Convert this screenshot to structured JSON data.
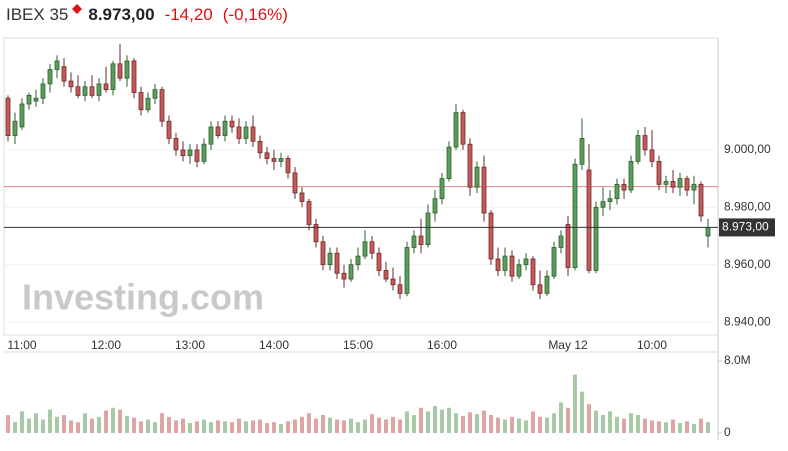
{
  "chart_data": {
    "type": "candlestick",
    "title": "IBEX 35",
    "change": "-14,20",
    "change_percent": "(-0,16%)",
    "watermark": "Investing.com",
    "last_price": {
      "value": 8973,
      "label": "8.973,00"
    },
    "prev_close": 8987.2,
    "up_color": "#5b9e5b",
    "down_color": "#c45a5a",
    "categories": [
      null,
      null,
      "11:00",
      null,
      null,
      null,
      null,
      null,
      null,
      null,
      null,
      null,
      null,
      null,
      "12:00",
      null,
      null,
      null,
      null,
      null,
      null,
      null,
      null,
      null,
      null,
      null,
      "13:00",
      null,
      null,
      null,
      null,
      null,
      null,
      null,
      null,
      null,
      null,
      null,
      "14:00",
      null,
      null,
      null,
      null,
      null,
      null,
      null,
      null,
      null,
      null,
      null,
      "15:00",
      null,
      null,
      null,
      null,
      null,
      null,
      null,
      null,
      null,
      null,
      null,
      "16:00",
      null,
      null,
      null,
      null,
      null,
      null,
      null,
      null,
      null,
      null,
      null,
      null,
      null,
      null,
      null,
      null,
      null,
      "May 12",
      null,
      null,
      null,
      null,
      null,
      null,
      null,
      null,
      null,
      null,
      null,
      "10:00",
      null,
      null,
      null,
      null,
      null,
      null,
      null,
      null
    ],
    "ohlc": [
      [
        9018,
        9019,
        9003,
        9005
      ],
      [
        9005,
        9013,
        9002,
        9010
      ],
      [
        9008,
        9018,
        9007,
        9016
      ],
      [
        9016,
        9020,
        9014,
        9019
      ],
      [
        9017,
        9021,
        9015,
        9018
      ],
      [
        9018,
        9025,
        9016,
        9023
      ],
      [
        9023,
        9030,
        9020,
        9028
      ],
      [
        9028,
        9033,
        9025,
        9031
      ],
      [
        9029,
        9032,
        9022,
        9024
      ],
      [
        9024,
        9027,
        9020,
        9022
      ],
      [
        9022,
        9026,
        9018,
        9019
      ],
      [
        9019,
        9024,
        9017,
        9022
      ],
      [
        9022,
        9026,
        9018,
        9019
      ],
      [
        9019,
        9025,
        9017,
        9023
      ],
      [
        9023,
        9029,
        9020,
        9021
      ],
      [
        9021,
        9031,
        9019,
        9030
      ],
      [
        9030,
        9037,
        9024,
        9025
      ],
      [
        9025,
        9033,
        9022,
        9031
      ],
      [
        9031,
        9032,
        9018,
        9020
      ],
      [
        9020,
        9022,
        9012,
        9014
      ],
      [
        9014,
        9020,
        9013,
        9018
      ],
      [
        9018,
        9023,
        9016,
        9021
      ],
      [
        9021,
        9022,
        9008,
        9010
      ],
      [
        9010,
        9012,
        9002,
        9004
      ],
      [
        9004,
        9006,
        8998,
        9000
      ],
      [
        9000,
        9003,
        8996,
        8998
      ],
      [
        8998,
        9002,
        8995,
        9000
      ],
      [
        9000,
        9002,
        8994,
        8996
      ],
      [
        8996,
        9004,
        8995,
        9002
      ],
      [
        9002,
        9010,
        9000,
        9008
      ],
      [
        9008,
        9010,
        9004,
        9005
      ],
      [
        9005,
        9012,
        9003,
        9010
      ],
      [
        9010,
        9012,
        9006,
        9008
      ],
      [
        9008,
        9011,
        9002,
        9004
      ],
      [
        9004,
        9010,
        9002,
        9008
      ],
      [
        9008,
        9012,
        9001,
        9003
      ],
      [
        9003,
        9005,
        8997,
        8999
      ],
      [
        8999,
        9001,
        8995,
        8997
      ],
      [
        8997,
        9000,
        8993,
        8996
      ],
      [
        8996,
        8999,
        8994,
        8997
      ],
      [
        8997,
        8998,
        8990,
        8992
      ],
      [
        8992,
        8994,
        8983,
        8985
      ],
      [
        8985,
        8987,
        8980,
        8982
      ],
      [
        8982,
        8983,
        8972,
        8974
      ],
      [
        8974,
        8976,
        8966,
        8968
      ],
      [
        8968,
        8970,
        8958,
        8960
      ],
      [
        8960,
        8966,
        8958,
        8964
      ],
      [
        8964,
        8966,
        8955,
        8957
      ],
      [
        8957,
        8960,
        8952,
        8955
      ],
      [
        8955,
        8962,
        8954,
        8960
      ],
      [
        8960,
        8966,
        8958,
        8963
      ],
      [
        8963,
        8972,
        8962,
        8968
      ],
      [
        8968,
        8970,
        8962,
        8964
      ],
      [
        8964,
        8966,
        8956,
        8958
      ],
      [
        8958,
        8961,
        8954,
        8955
      ],
      [
        8955,
        8959,
        8951,
        8953
      ],
      [
        8953,
        8956,
        8948,
        8950
      ],
      [
        8950,
        8968,
        8949,
        8966
      ],
      [
        8966,
        8972,
        8964,
        8970
      ],
      [
        8970,
        8976,
        8964,
        8967
      ],
      [
        8967,
        8981,
        8966,
        8978
      ],
      [
        8978,
        8986,
        8975,
        8983
      ],
      [
        8983,
        8992,
        8981,
        8990
      ],
      [
        8990,
        9003,
        8989,
        9001
      ],
      [
        9001,
        9016,
        9000,
        9013
      ],
      [
        9013,
        9014,
        9000,
        9002
      ],
      [
        9002,
        9004,
        8984,
        8987
      ],
      [
        8987,
        8996,
        8985,
        8994
      ],
      [
        8994,
        8998,
        8975,
        8978
      ],
      [
        8978,
        8979,
        8960,
        8962
      ],
      [
        8962,
        8966,
        8956,
        8958
      ],
      [
        8958,
        8966,
        8956,
        8963
      ],
      [
        8963,
        8965,
        8954,
        8956
      ],
      [
        8956,
        8962,
        8955,
        8960
      ],
      [
        8960,
        8964,
        8958,
        8962
      ],
      [
        8962,
        8963,
        8951,
        8953
      ],
      [
        8953,
        8958,
        8948,
        8950
      ],
      [
        8950,
        8958,
        8949,
        8956
      ],
      [
        8956,
        8968,
        8955,
        8966
      ],
      [
        8966,
        8972,
        8964,
        8970
      ],
      [
        8974,
        8977,
        8956,
        8959
      ],
      [
        8959,
        8997,
        8958,
        8995
      ],
      [
        8995,
        9011,
        8993,
        9004
      ],
      [
        8993,
        9002,
        8957,
        8958
      ],
      [
        8958,
        8982,
        8957,
        8980
      ],
      [
        8980,
        8987,
        8977,
        8982
      ],
      [
        8982,
        8986,
        8979,
        8983
      ],
      [
        8983,
        8990,
        8981,
        8988
      ],
      [
        8988,
        8990,
        8983,
        8986
      ],
      [
        8986,
        8998,
        8985,
        8996
      ],
      [
        8996,
        9007,
        8995,
        9005
      ],
      [
        9005,
        9008,
        8998,
        9000
      ],
      [
        9000,
        9007,
        8994,
        8996
      ],
      [
        8996,
        8998,
        8986,
        8988
      ],
      [
        8988,
        8991,
        8985,
        8989
      ],
      [
        8989,
        8993,
        8985,
        8987
      ],
      [
        8987,
        8992,
        8984,
        8990
      ],
      [
        8990,
        8991,
        8984,
        8986
      ],
      [
        8986,
        8991,
        8981,
        8988
      ],
      [
        8988,
        8989,
        8975,
        8977
      ],
      [
        8970,
        8976,
        8966,
        8973
      ]
    ],
    "volume": [
      2.0,
      1.2,
      2.4,
      1.6,
      2.2,
      1.5,
      2.6,
      1.8,
      2.0,
      1.4,
      1.2,
      2.2,
      1.6,
      1.8,
      2.5,
      2.8,
      2.6,
      1.9,
      1.7,
      1.3,
      1.5,
      1.2,
      2.2,
      1.8,
      1.4,
      1.6,
      1.1,
      1.3,
      1.5,
      1.2,
      1.4,
      1.3,
      1.2,
      1.6,
      1.3,
      1.4,
      1.5,
      1.1,
      1.2,
      1.0,
      1.3,
      1.5,
      1.8,
      2.2,
      1.6,
      2.0,
      1.7,
      1.5,
      1.4,
      1.6,
      1.2,
      1.5,
      2.1,
      1.7,
      1.5,
      1.8,
      1.5,
      2.4,
      2.0,
      2.8,
      2.4,
      3.0,
      2.6,
      2.8,
      2.2,
      1.9,
      2.3,
      2.1,
      2.5,
      2.0,
      1.7,
      1.5,
      1.8,
      1.6,
      1.4,
      2.4,
      1.8,
      1.7,
      2.2,
      3.4,
      2.8,
      6.5,
      4.6,
      3.2,
      2.5,
      2.0,
      2.4,
      1.8,
      1.6,
      2.2,
      2.0,
      1.6,
      1.4,
      1.3,
      1.2,
      1.5,
      1.1,
      1.3,
      1.0,
      1.6,
      1.2
    ],
    "ylim": [
      8935.5,
      9039
    ],
    "yticks": [
      {
        "value": 9000,
        "label": "9.000,00"
      },
      {
        "value": 8980,
        "label": "8.980,00"
      },
      {
        "value": 8960,
        "label": "8.960,00"
      },
      {
        "value": 8940,
        "label": "8.940,00"
      }
    ],
    "volume_ylim": [
      0,
      8
    ],
    "volume_ticks": [
      {
        "value": 8,
        "label": "8.0M"
      },
      0
    ]
  }
}
